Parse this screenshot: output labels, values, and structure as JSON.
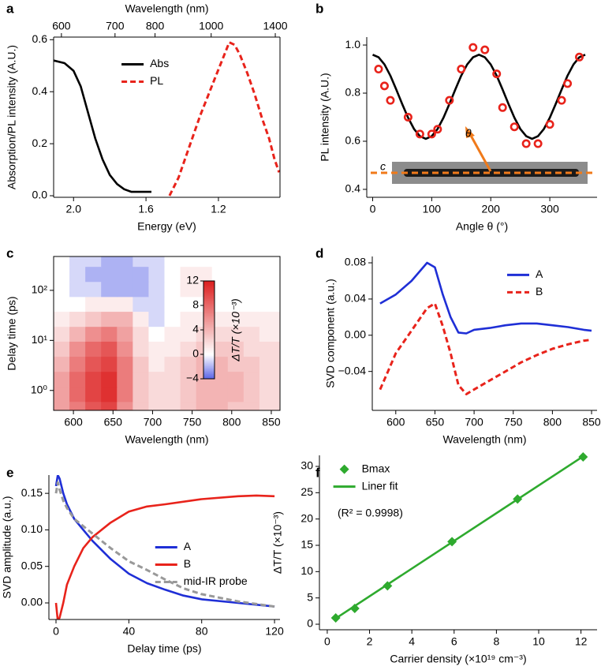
{
  "chart_data": [
    {
      "panel": "a",
      "type": "line",
      "xlabel": "Energy (eV)",
      "ylabel": "Absorption/PL intensity (A.U.)",
      "x2label": "Wavelength (nm)",
      "xlim": [
        2.11,
        0.86
      ],
      "ylim": [
        -0.006,
        0.61
      ],
      "xticks": [
        {
          "value": 2,
          "label": "2.0"
        },
        1.6,
        1.2
      ],
      "x2ticks": [
        {
          "value": 2.067,
          "label": "600"
        },
        {
          "value": 1.771,
          "label": "700"
        },
        {
          "value": 1.55,
          "label": "800"
        },
        {
          "value": 1.24,
          "label": "1000"
        },
        {
          "value": 0.886,
          "label": "1400"
        }
      ],
      "yticks": [
        {
          "value": 0,
          "label": "0.0"
        },
        0.2,
        0.4,
        0.6
      ],
      "legend": "upper center",
      "series": [
        {
          "name": "Abs",
          "color": "#000000",
          "style": "solid",
          "x": [
            2.11,
            2.05,
            2.0,
            1.96,
            1.92,
            1.88,
            1.84,
            1.8,
            1.76,
            1.72,
            1.68,
            1.64,
            1.6,
            1.57
          ],
          "values": [
            0.52,
            0.51,
            0.48,
            0.42,
            0.32,
            0.22,
            0.14,
            0.08,
            0.045,
            0.025,
            0.015,
            0.015,
            0.015,
            0.015
          ]
        },
        {
          "name": "PL",
          "color": "#e8231b",
          "style": "dashed",
          "x": [
            1.47,
            1.42,
            1.38,
            1.34,
            1.3,
            1.26,
            1.22,
            1.18,
            1.14,
            1.11,
            1.08,
            1.04,
            1.0,
            0.96,
            0.92,
            0.89,
            0.865
          ],
          "values": [
            0.0,
            0.07,
            0.15,
            0.23,
            0.31,
            0.38,
            0.45,
            0.52,
            0.59,
            0.58,
            0.54,
            0.47,
            0.39,
            0.3,
            0.22,
            0.14,
            0.09
          ]
        }
      ]
    },
    {
      "panel": "b",
      "type": "line",
      "xlabel": "Angle θ (°)",
      "ylabel": "PL intensity (A.U.)",
      "xlim": [
        -10,
        380
      ],
      "ylim": [
        0.367,
        1.033
      ],
      "xticks": [
        0,
        100,
        200,
        300
      ],
      "yticks": [
        0.4,
        0.6,
        0.8,
        {
          "value": 1,
          "label": "1.0"
        }
      ],
      "annotations": [
        "c",
        "θ"
      ],
      "series": [
        {
          "color": "#000000",
          "style": "solid",
          "x": [
            0,
            10,
            20,
            30,
            40,
            50,
            60,
            70,
            80,
            90,
            100,
            110,
            120,
            130,
            140,
            150,
            160,
            170,
            180,
            190,
            200,
            210,
            220,
            230,
            240,
            250,
            260,
            270,
            280,
            290,
            300,
            310,
            320,
            330,
            340,
            350,
            360
          ],
          "values": [
            0.96,
            0.949,
            0.919,
            0.873,
            0.815,
            0.755,
            0.698,
            0.651,
            0.621,
            0.61,
            0.621,
            0.651,
            0.698,
            0.755,
            0.815,
            0.873,
            0.919,
            0.949,
            0.96,
            0.949,
            0.919,
            0.873,
            0.815,
            0.755,
            0.698,
            0.651,
            0.621,
            0.61,
            0.621,
            0.651,
            0.698,
            0.755,
            0.815,
            0.873,
            0.919,
            0.949,
            0.96
          ]
        },
        {
          "color": "#e8231b",
          "style": "circles",
          "x": [
            10,
            20,
            30,
            60,
            80,
            100,
            110,
            130,
            150,
            170,
            190,
            210,
            220,
            240,
            260,
            280,
            300,
            320,
            330,
            350
          ],
          "values": [
            0.9,
            0.83,
            0.77,
            0.7,
            0.63,
            0.63,
            0.65,
            0.77,
            0.9,
            0.99,
            0.98,
            0.88,
            0.74,
            0.66,
            0.59,
            0.59,
            0.67,
            0.77,
            0.84,
            0.95
          ]
        }
      ]
    },
    {
      "panel": "c",
      "type": "heatmap",
      "xlabel": "Wavelength (nm)",
      "ylabel": "Delay time (ps)",
      "xlim": [
        575,
        861
      ],
      "ylim": [
        0.4,
        475
      ],
      "ylog": true,
      "xticks": [
        600,
        650,
        700,
        750,
        800,
        850
      ],
      "yticks": [
        {
          "value": 1,
          "label": "10⁰"
        },
        {
          "value": 10,
          "label": "10¹"
        },
        {
          "value": 100,
          "label": "10²"
        }
      ],
      "x": [
        575,
        595,
        615,
        635,
        655,
        675,
        695,
        715,
        735,
        755,
        775,
        795,
        815,
        835,
        861
      ],
      "y": [
        0.4,
        0.6,
        1.2,
        2.4,
        4.8,
        9.6,
        19,
        38,
        75,
        150,
        300,
        475
      ],
      "z": [
        [
          5,
          7,
          9,
          10,
          6,
          3,
          2,
          2,
          3,
          4,
          4,
          3,
          3,
          2
        ],
        [
          5,
          8,
          10,
          11,
          7,
          3,
          2,
          2,
          3,
          4,
          4,
          4,
          3,
          2
        ],
        [
          5,
          8,
          10,
          11,
          7,
          3,
          2,
          2,
          3,
          4,
          4,
          4,
          3,
          2
        ],
        [
          4,
          7,
          9,
          10,
          7,
          3,
          1,
          2,
          3,
          4,
          4,
          3,
          3,
          2
        ],
        [
          3,
          6,
          8,
          9,
          6,
          2,
          1,
          1,
          2,
          3,
          3,
          3,
          2,
          2
        ],
        [
          2,
          4,
          6,
          7,
          5,
          2,
          0,
          1,
          1,
          2,
          2,
          2,
          2,
          1
        ],
        [
          1,
          2,
          3,
          4,
          4,
          1,
          -1,
          0,
          1,
          1,
          1,
          1,
          1,
          1
        ],
        [
          0,
          0,
          1,
          1,
          1,
          -1,
          -1,
          0,
          0,
          0,
          0,
          0,
          0,
          0
        ],
        [
          0,
          -1,
          -1,
          -2,
          -2,
          -2,
          -1,
          0,
          1,
          1,
          0,
          0,
          0,
          0
        ],
        [
          0,
          -1,
          -2,
          -2,
          -2,
          -2,
          -1,
          0,
          1,
          1,
          0,
          0,
          0,
          0
        ],
        [
          0,
          -1,
          -1,
          -2,
          -2,
          -1,
          -1,
          0,
          0,
          0,
          0,
          0,
          0,
          0
        ]
      ],
      "zlim": [
        -4,
        12
      ],
      "zticks": [
        {
          "value": -4,
          "label": "−4"
        },
        0,
        4,
        8,
        12
      ],
      "zlabel": "ΔT/T (×10⁻³)"
    },
    {
      "panel": "d",
      "type": "line",
      "xlabel": "Wavelength (nm)",
      "ylabel": "SVD component (a.u.)",
      "xlim": [
        570,
        857
      ],
      "ylim": [
        -0.083,
        0.087
      ],
      "xticks": [
        600,
        650,
        700,
        750,
        800,
        850
      ],
      "yticks": [
        {
          "value": -0.04,
          "label": "−0.04"
        },
        {
          "value": 0,
          "label": "0.00"
        },
        0.04,
        0.08
      ],
      "legend": "upper right",
      "series": [
        {
          "name": "A",
          "color": "#1f2fd6",
          "style": "solid",
          "x": [
            580,
            600,
            620,
            640,
            650,
            660,
            670,
            680,
            690,
            700,
            720,
            740,
            760,
            780,
            800,
            820,
            840,
            850
          ],
          "values": [
            0.035,
            0.045,
            0.06,
            0.08,
            0.075,
            0.045,
            0.02,
            0.003,
            0.002,
            0.006,
            0.008,
            0.011,
            0.013,
            0.013,
            0.011,
            0.009,
            0.006,
            0.005
          ]
        },
        {
          "name": "B",
          "color": "#e8231b",
          "style": "dashed",
          "x": [
            580,
            590,
            600,
            620,
            640,
            650,
            660,
            670,
            680,
            690,
            700,
            720,
            740,
            760,
            780,
            800,
            820,
            840,
            850
          ],
          "values": [
            -0.06,
            -0.04,
            -0.02,
            0.005,
            0.03,
            0.035,
            0.01,
            -0.02,
            -0.055,
            -0.065,
            -0.06,
            -0.05,
            -0.04,
            -0.03,
            -0.022,
            -0.015,
            -0.01,
            -0.006,
            -0.005
          ]
        }
      ]
    },
    {
      "panel": "e",
      "type": "line",
      "xlabel": "Delay time (ps)",
      "ylabel": "SVD amplitude (a.u.)",
      "xlim": [
        -3.9,
        123
      ],
      "ylim": [
        -0.0227,
        0.175
      ],
      "xticks": [
        0,
        40,
        80,
        120
      ],
      "yticks": [
        {
          "value": 0,
          "label": "0.00"
        },
        0.05,
        {
          "value": 0.1,
          "label": "0.10"
        },
        0.15
      ],
      "legend": "center right",
      "series": [
        {
          "name": "A",
          "color": "#1f2fd6",
          "style": "solid",
          "x": [
            0,
            1,
            2,
            4,
            6,
            10,
            15,
            20,
            30,
            40,
            50,
            60,
            70,
            80,
            100,
            120
          ],
          "values": [
            0.16,
            0.175,
            0.17,
            0.15,
            0.135,
            0.115,
            0.1,
            0.085,
            0.06,
            0.04,
            0.027,
            0.018,
            0.01,
            0.005,
            0.0,
            -0.005
          ]
        },
        {
          "name": "B",
          "color": "#e8231b",
          "style": "solid",
          "x": [
            0,
            1,
            2,
            4,
            6,
            10,
            15,
            20,
            30,
            40,
            50,
            60,
            80,
            100,
            110,
            120
          ],
          "values": [
            0.0,
            -0.025,
            -0.02,
            0.0,
            0.025,
            0.05,
            0.075,
            0.09,
            0.11,
            0.125,
            0.132,
            0.135,
            0.142,
            0.146,
            0.147,
            0.146
          ]
        },
        {
          "name": "mid-IR probe",
          "color": "#999999",
          "style": "dashed",
          "x": [
            0,
            1,
            2,
            4,
            6,
            10,
            15,
            20,
            30,
            40,
            50,
            60,
            70,
            80,
            100,
            120
          ],
          "values": [
            0.15,
            0.165,
            0.155,
            0.14,
            0.13,
            0.115,
            0.105,
            0.095,
            0.075,
            0.057,
            0.045,
            0.032,
            0.02,
            0.012,
            0.002,
            -0.005
          ]
        }
      ]
    },
    {
      "panel": "f",
      "type": "line",
      "xlabel": "Carrier density (×10¹⁹ cm⁻³)",
      "ylabel": "ΔT/T (×10⁻³)",
      "xlim": [
        -0.37,
        12.76
      ],
      "ylim": [
        -1.05,
        32.1
      ],
      "xticks": [
        0,
        2,
        4,
        6,
        8,
        10,
        12
      ],
      "yticks": [
        0,
        5,
        10,
        15,
        20,
        25,
        30
      ],
      "legend": "upper left",
      "annotations": [
        "(R² = 0.9998)"
      ],
      "series": [
        {
          "name": "Bmax",
          "color": "#2eaa2e",
          "style": "diamonds",
          "x": [
            0.4,
            1.3,
            2.85,
            5.9,
            9.0,
            12.1
          ],
          "values": [
            1.2,
            3.0,
            7.3,
            15.7,
            23.8,
            31.8
          ]
        },
        {
          "name": "Liner fit",
          "color": "#2eaa2e",
          "style": "solid",
          "x": [
            0.4,
            12.1
          ],
          "values": [
            1.1,
            31.9
          ]
        }
      ]
    }
  ]
}
